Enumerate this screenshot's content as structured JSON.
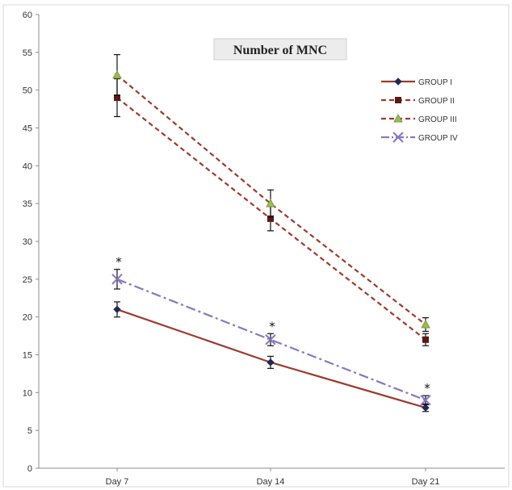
{
  "chart_data": {
    "type": "line",
    "title": "Number of MNC",
    "xlabel": "",
    "ylabel": "",
    "categories": [
      "Day 7",
      "Day 14",
      "Day 21"
    ],
    "ylim": [
      0,
      60
    ],
    "yticks": [
      0,
      5,
      10,
      15,
      20,
      25,
      30,
      35,
      40,
      45,
      50,
      55,
      60
    ],
    "grid": false,
    "legend_position": "top-right",
    "series": [
      {
        "name": "GROUP I",
        "values": [
          21,
          14,
          8
        ],
        "errors": [
          1.0,
          0.8,
          0.5
        ],
        "color": "#9e3a2e",
        "dash": "solid",
        "marker": "diamond",
        "significant": [
          false,
          false,
          false
        ]
      },
      {
        "name": "GROUP II",
        "values": [
          49,
          33,
          17
        ],
        "errors": [
          2.5,
          1.6,
          0.8
        ],
        "color": "#9e3a2e",
        "dash": "dashed",
        "marker": "square",
        "significant": [
          false,
          false,
          false
        ]
      },
      {
        "name": "GROUP III",
        "values": [
          52,
          35,
          19
        ],
        "errors": [
          2.7,
          1.8,
          0.9
        ],
        "color": "#9e3a2e",
        "dash": "dashed",
        "marker": "triangle",
        "significant": [
          false,
          false,
          false
        ]
      },
      {
        "name": "GROUP IV",
        "values": [
          25,
          17,
          9
        ],
        "errors": [
          1.3,
          0.8,
          0.6
        ],
        "color": "#8877c0",
        "dash": "dashdot",
        "marker": "x",
        "significant": [
          true,
          true,
          true
        ]
      }
    ],
    "annotation_symbol": "*"
  }
}
